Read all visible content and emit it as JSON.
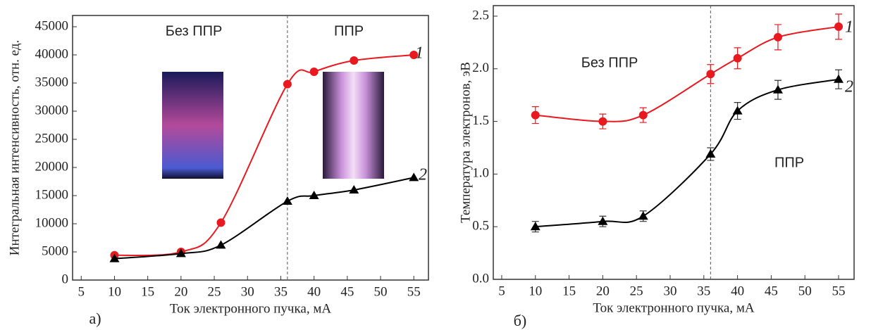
{
  "chart_data": [
    {
      "type": "line",
      "panel_label": "а)",
      "xlabel": "Ток электронного пучка, мА",
      "ylabel": "Интегральная интенсивность, отн. ед.",
      "annotations": [
        "Без ППР",
        "ППР"
      ],
      "divider_x": 36,
      "xlim": [
        3.7,
        57.2
      ],
      "xticks": [
        5,
        10,
        15,
        20,
        25,
        30,
        35,
        40,
        45,
        50,
        55
      ],
      "ylim": [
        0,
        47000
      ],
      "yticks": [
        0,
        5000,
        10000,
        15000,
        20000,
        25000,
        30000,
        35000,
        40000,
        45000
      ],
      "x": [
        10,
        20,
        26,
        36,
        40,
        46,
        55
      ],
      "series": [
        {
          "name": "1",
          "color": "#e8191f",
          "marker": "circle",
          "values": [
            4400,
            5000,
            10200,
            34800,
            37000,
            39000,
            40000
          ]
        },
        {
          "name": "2",
          "color": "#000000",
          "marker": "triangle",
          "values": [
            3800,
            4700,
            6200,
            14000,
            15000,
            16000,
            18200
          ]
        }
      ]
    },
    {
      "type": "line",
      "panel_label": "б)",
      "xlabel": "Ток электронного пучка, мА",
      "ylabel": "Температура электронов, эВ",
      "annotations": [
        "Без ППР",
        "ППР"
      ],
      "divider_x": 36,
      "xlim": [
        3.75,
        57.3
      ],
      "xticks": [
        5,
        10,
        15,
        20,
        25,
        30,
        35,
        40,
        45,
        50,
        55
      ],
      "ylim": [
        0,
        2.6
      ],
      "yticks": [
        {
          "value": 0,
          "label": "0.0"
        },
        0.5,
        {
          "value": 1,
          "label": "1.0"
        },
        1.5,
        {
          "value": 2,
          "label": "2.0"
        },
        2.5
      ],
      "x": [
        10,
        20,
        26,
        36,
        40,
        46,
        55
      ],
      "series": [
        {
          "name": "1",
          "color": "#e8191f",
          "marker": "circle",
          "values": [
            1.56,
            1.5,
            1.56,
            1.95,
            2.1,
            2.3,
            2.4
          ],
          "errors": [
            0.08,
            0.07,
            0.07,
            0.09,
            0.1,
            0.12,
            0.12
          ]
        },
        {
          "name": "2",
          "color": "#000000",
          "marker": "triangle",
          "values": [
            0.5,
            0.55,
            0.6,
            1.19,
            1.6,
            1.8,
            1.9
          ],
          "errors": [
            0.05,
            0.05,
            0.05,
            0.06,
            0.08,
            0.09,
            0.09
          ]
        }
      ]
    }
  ]
}
